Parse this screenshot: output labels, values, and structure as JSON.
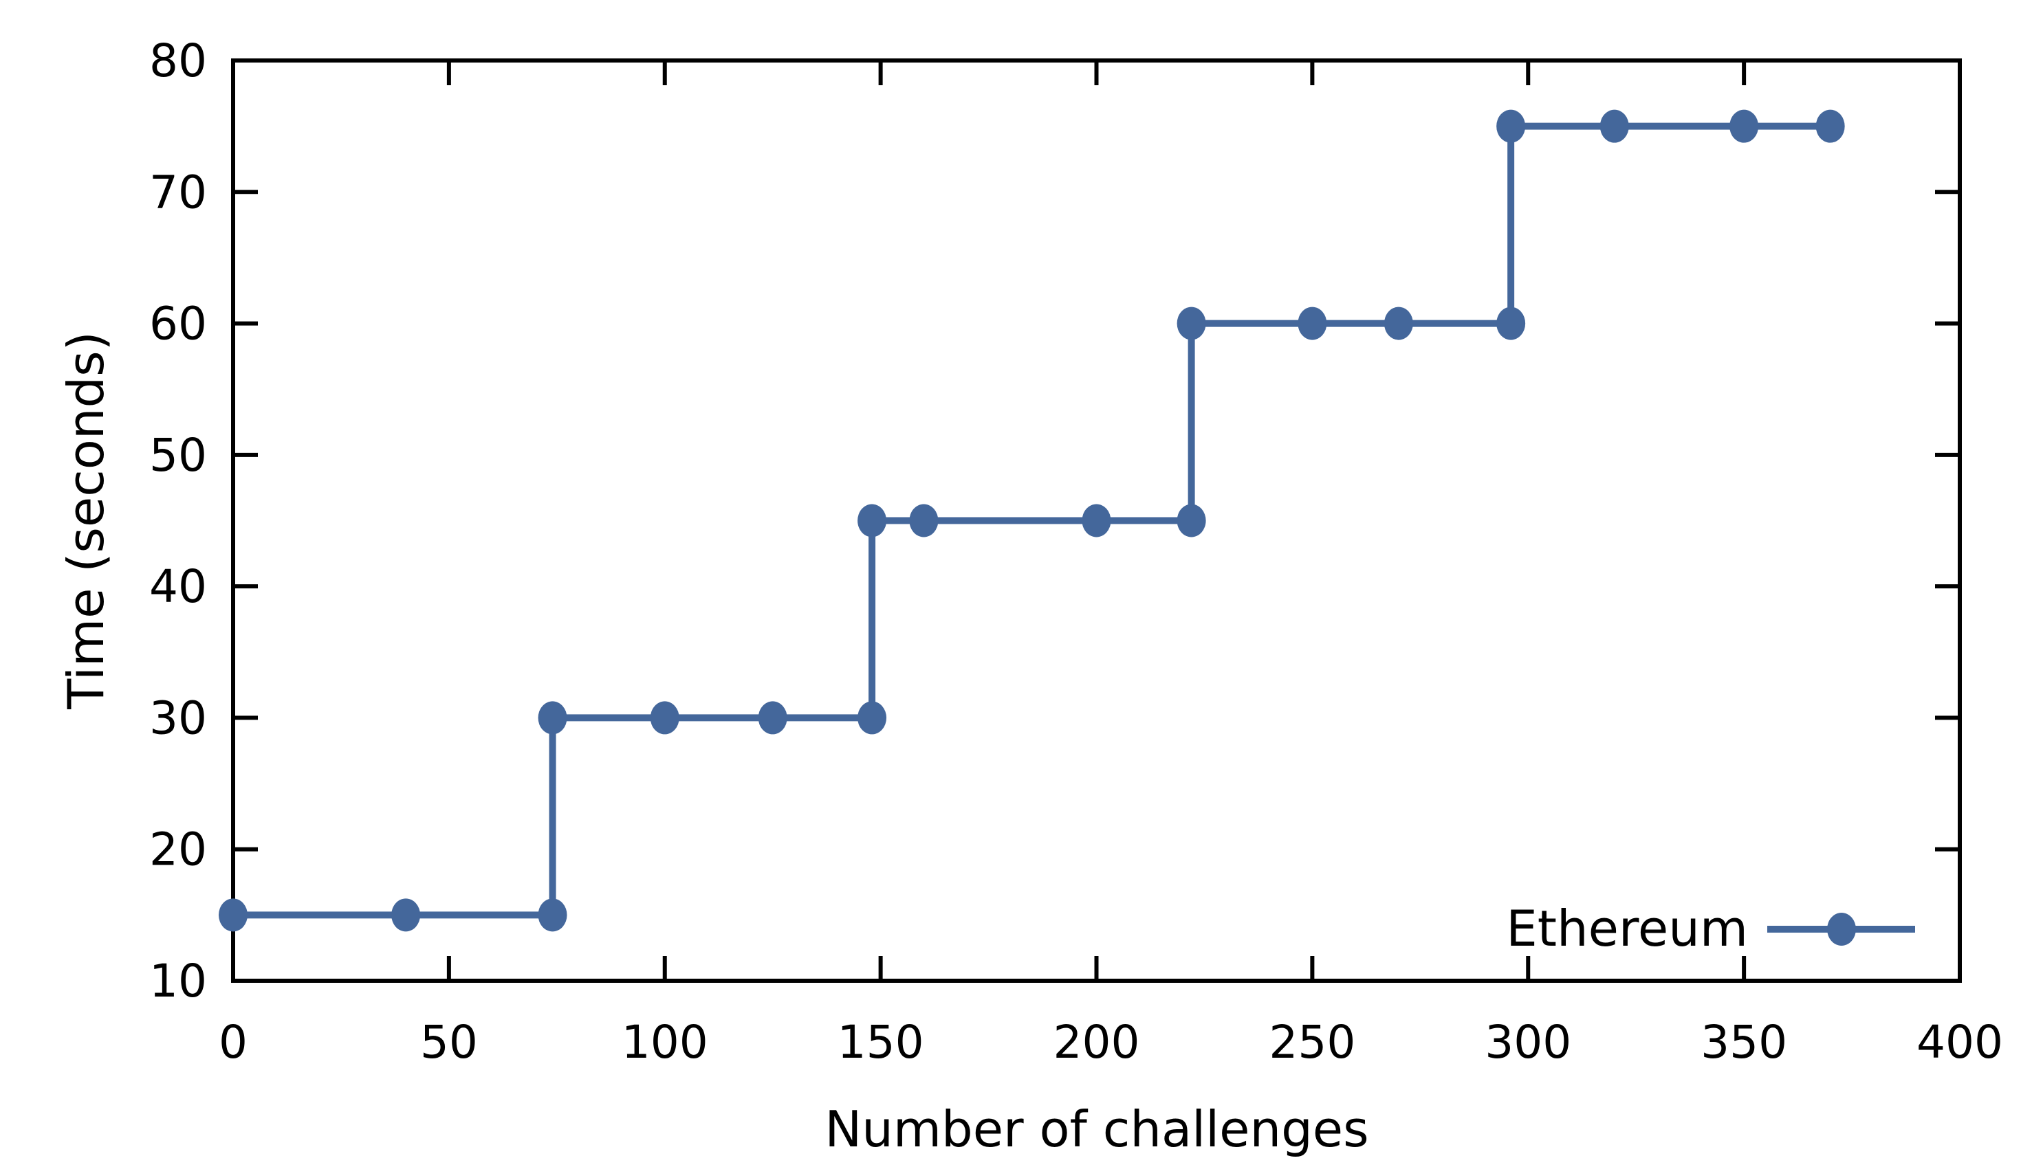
{
  "chart_data": {
    "type": "line",
    "subtype": "step-linespoints",
    "title": "",
    "xlabel": "Number of challenges",
    "ylabel": "Time (seconds)",
    "xlim": [
      0,
      400
    ],
    "ylim": [
      10,
      80
    ],
    "x_ticks": [
      0,
      50,
      100,
      150,
      200,
      250,
      300,
      350,
      400
    ],
    "y_ticks": [
      10,
      20,
      30,
      40,
      50,
      60,
      70,
      80
    ],
    "grid": false,
    "legend_position": "inside-bottom-right",
    "series": [
      {
        "name": "Ethereum",
        "color": "#44679B",
        "marker": "filled-circle",
        "points": [
          [
            0,
            15
          ],
          [
            40,
            15
          ],
          [
            74,
            15
          ],
          [
            74,
            30
          ],
          [
            100,
            30
          ],
          [
            125,
            30
          ],
          [
            148,
            30
          ],
          [
            148,
            45
          ],
          [
            160,
            45
          ],
          [
            200,
            45
          ],
          [
            222,
            45
          ],
          [
            222,
            60
          ],
          [
            250,
            60
          ],
          [
            270,
            60
          ],
          [
            296,
            60
          ],
          [
            296,
            75
          ],
          [
            320,
            75
          ],
          [
            350,
            75
          ],
          [
            370,
            75
          ]
        ]
      }
    ]
  },
  "colors": {
    "background": "#ffffff",
    "axis": "#000000",
    "text": "#000000",
    "series_ethereum": "#44679B"
  },
  "legend": {
    "label": "Ethereum"
  }
}
